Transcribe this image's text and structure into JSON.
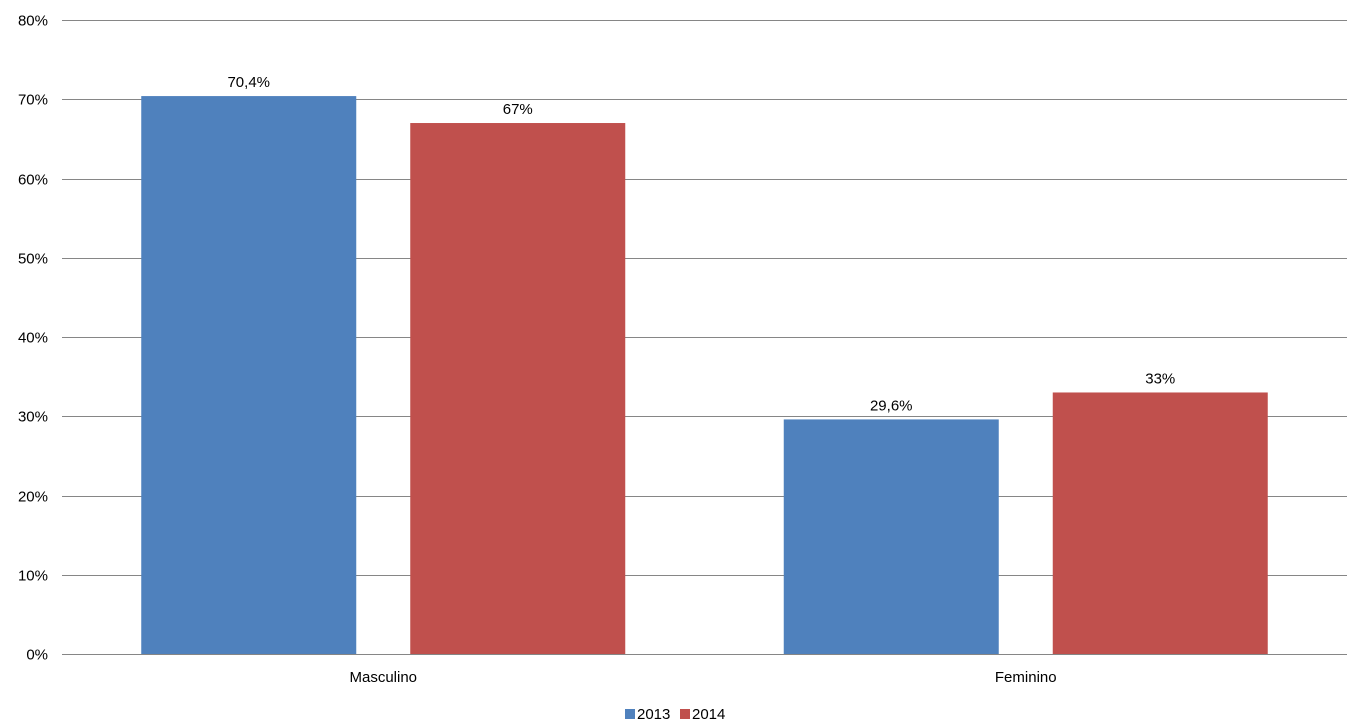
{
  "chart_data": {
    "type": "bar",
    "title": "",
    "xlabel": "",
    "ylabel": "",
    "categories": [
      "Masculino",
      "Feminino"
    ],
    "series": [
      {
        "name": "2013",
        "values": [
          70.4,
          29.6
        ],
        "labels": [
          "70,4%",
          "29,6%"
        ],
        "color": "#4F81BD"
      },
      {
        "name": "2014",
        "values": [
          67,
          33
        ],
        "labels": [
          "67%",
          "33%"
        ],
        "color": "#C0504D"
      }
    ],
    "ylim": [
      0,
      80
    ],
    "yticks": [
      {
        "value": 0,
        "label": "0%"
      },
      {
        "value": 10,
        "label": "10%"
      },
      {
        "value": 20,
        "label": "20%"
      },
      {
        "value": 30,
        "label": "30%"
      },
      {
        "value": 40,
        "label": "40%"
      },
      {
        "value": 50,
        "label": "50%"
      },
      {
        "value": 60,
        "label": "60%"
      },
      {
        "value": 70,
        "label": "70%"
      },
      {
        "value": 80,
        "label": "80%"
      }
    ],
    "grid": true,
    "legend_position": "bottom",
    "gridline_color": "#868686"
  }
}
